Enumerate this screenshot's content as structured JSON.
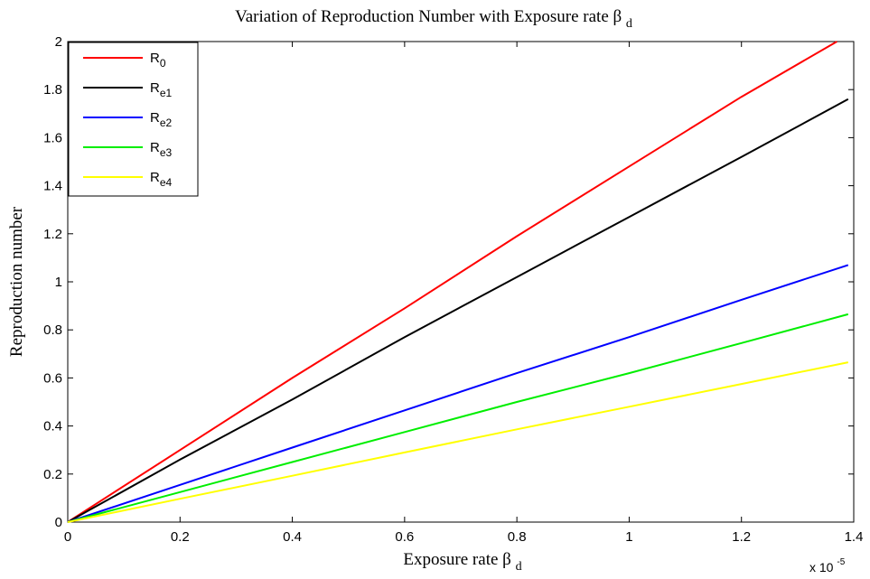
{
  "chart_data": {
    "type": "line",
    "title": "Variation of Reproduction Number with Exposure rate",
    "title_symbol": "β",
    "title_subscript": "d",
    "xlabel": "Exposure rate",
    "xlabel_symbol": "β",
    "xlabel_subscript": "d",
    "ylabel": "Reproduction number",
    "x_multiplier": "x 10",
    "x_multiplier_exp": "-5",
    "xlim": [
      0,
      1.4
    ],
    "ylim": [
      0,
      2
    ],
    "xticks": [
      "0",
      "0.2",
      "0.4",
      "0.6",
      "0.8",
      "1",
      "1.2",
      "1.4"
    ],
    "yticks": [
      "0",
      "0.2",
      "0.4",
      "0.6",
      "0.8",
      "1",
      "1.2",
      "1.4",
      "1.6",
      "1.8",
      "2"
    ],
    "grid": false,
    "legend_position": "top-left",
    "series": [
      {
        "name": "R",
        "sub": "0",
        "color": "#ff0000",
        "x": [
          0,
          0.2,
          0.4,
          0.6,
          0.8,
          1.0,
          1.2,
          1.37
        ],
        "values": [
          0,
          0.3,
          0.6,
          0.89,
          1.19,
          1.48,
          1.77,
          2.0
        ]
      },
      {
        "name": "R",
        "sub": "e1",
        "color": "#000000",
        "x": [
          0,
          0.2,
          0.4,
          0.6,
          0.8,
          1.0,
          1.2,
          1.39
        ],
        "values": [
          0,
          0.26,
          0.51,
          0.77,
          1.02,
          1.27,
          1.52,
          1.76
        ]
      },
      {
        "name": "R",
        "sub": "e2",
        "color": "#0000ff",
        "x": [
          0,
          0.2,
          0.4,
          0.6,
          0.8,
          1.0,
          1.2,
          1.39
        ],
        "values": [
          0,
          0.155,
          0.31,
          0.465,
          0.62,
          0.77,
          0.925,
          1.07
        ]
      },
      {
        "name": "R",
        "sub": "e3",
        "color": "#00ee00",
        "x": [
          0,
          0.2,
          0.4,
          0.6,
          0.8,
          1.0,
          1.2,
          1.39
        ],
        "values": [
          0,
          0.125,
          0.25,
          0.375,
          0.5,
          0.62,
          0.745,
          0.865
        ]
      },
      {
        "name": "R",
        "sub": "e4",
        "color": "#ffff00",
        "x": [
          0,
          0.2,
          0.4,
          0.6,
          0.8,
          1.0,
          1.2,
          1.39
        ],
        "values": [
          0,
          0.097,
          0.193,
          0.29,
          0.386,
          0.48,
          0.575,
          0.665
        ]
      }
    ]
  }
}
